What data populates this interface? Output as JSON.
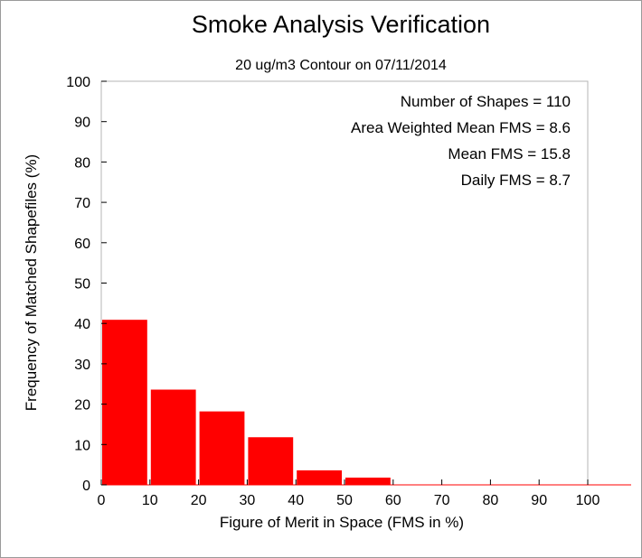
{
  "chart_data": {
    "type": "bar",
    "title": "Smoke Analysis Verification",
    "subtitle": "20 ug/m3 Contour on 07/11/2014",
    "xlabel": "Figure of Merit in Space (FMS in %)",
    "ylabel": "Frequency of Matched Shapefiles (%)",
    "xlim": [
      0,
      100
    ],
    "ylim": [
      0,
      100
    ],
    "xticks": [
      0,
      10,
      20,
      30,
      40,
      50,
      60,
      70,
      80,
      90,
      100
    ],
    "yticks": [
      0,
      10,
      20,
      30,
      40,
      50,
      60,
      70,
      80,
      90,
      100
    ],
    "bin_width": 10,
    "bins": [
      0,
      10,
      20,
      30,
      40,
      50,
      60,
      70,
      80,
      90
    ],
    "values": [
      40.9,
      23.6,
      18.2,
      11.8,
      3.6,
      1.8,
      0,
      0,
      0,
      0
    ],
    "bar_color": "#ff0000",
    "annotations": [
      "Number of Shapes = 110",
      "Area Weighted Mean FMS = 8.6",
      "Mean FMS = 15.8",
      "Daily FMS = 8.7"
    ],
    "grid": false
  }
}
